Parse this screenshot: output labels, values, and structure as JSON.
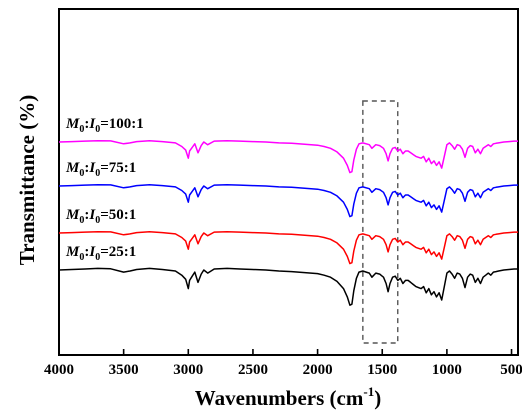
{
  "chart_data": {
    "type": "line",
    "title": "",
    "xlabel": "Wavenumbers",
    "xlabel_unit": "(cm",
    "xlabel_unit_sup": "-1",
    "xlabel_unit_close": ")",
    "ylabel": "Transmittance (%)",
    "xlim": [
      4000,
      450
    ],
    "x_reversed": true,
    "grid": false,
    "legend": "inline labels above each curve",
    "x_ticks": [
      4000,
      3500,
      3000,
      2500,
      2000,
      1500,
      1000,
      500
    ],
    "x_tick_labels": [
      "4000",
      "3500",
      "3000",
      "2500",
      "2000",
      "1500",
      "1000",
      "500"
    ],
    "y_ticks_shown": false,
    "highlight_box": {
      "x_from": 1650,
      "x_to": 1380,
      "style": "dashed"
    },
    "series": [
      {
        "name": "M0:I0=100:1",
        "label_parts": [
          "M",
          "0",
          ":",
          "I",
          "0",
          "=100:1"
        ],
        "color": "#ff00ff",
        "offset": 3
      },
      {
        "name": "M0:I0=75:1",
        "label_parts": [
          "M",
          "0",
          ":",
          "I",
          "0",
          "=75:1"
        ],
        "color": "#0000ff",
        "offset": 2
      },
      {
        "name": "M0:I0=50:1",
        "label_parts": [
          "M",
          "0",
          ":",
          "I",
          "0",
          "=50:1"
        ],
        "color": "#ff0000",
        "offset": 1
      },
      {
        "name": "M0:I0=25:1",
        "label_parts": [
          "M",
          "0",
          ":",
          "I",
          "0",
          "=25:1"
        ],
        "color": "#000000",
        "offset": 0
      }
    ],
    "profile": {
      "x": [
        4000,
        3900,
        3800,
        3700,
        3600,
        3500,
        3450,
        3400,
        3300,
        3200,
        3100,
        3050,
        3020,
        3000,
        2990,
        2970,
        2950,
        2925,
        2900,
        2880,
        2850,
        2800,
        2700,
        2600,
        2500,
        2400,
        2300,
        2200,
        2100,
        2000,
        1950,
        1900,
        1850,
        1800,
        1770,
        1750,
        1735,
        1720,
        1700,
        1680,
        1650,
        1600,
        1580,
        1550,
        1520,
        1490,
        1470,
        1455,
        1440,
        1420,
        1400,
        1380,
        1360,
        1340,
        1320,
        1300,
        1280,
        1260,
        1240,
        1220,
        1200,
        1180,
        1160,
        1140,
        1120,
        1100,
        1080,
        1060,
        1040,
        1020,
        1000,
        980,
        960,
        940,
        920,
        900,
        880,
        860,
        840,
        820,
        800,
        780,
        760,
        740,
        720,
        700,
        680,
        660,
        640,
        620,
        600,
        560,
        520,
        480,
        450
      ],
      "y": [
        0.0,
        0.05,
        0.1,
        0.15,
        0.12,
        -0.2,
        -0.1,
        0.05,
        0.15,
        0.05,
        -0.1,
        -0.5,
        -0.9,
        -1.8,
        -1.0,
        -0.6,
        -0.2,
        -1.2,
        -0.4,
        0.0,
        -0.3,
        0.1,
        0.15,
        0.1,
        0.05,
        0.0,
        -0.1,
        -0.15,
        -0.25,
        -0.35,
        -0.5,
        -0.7,
        -1.1,
        -1.8,
        -2.6,
        -3.4,
        -3.3,
        -2.0,
        -0.8,
        -0.2,
        -0.1,
        -0.3,
        -0.7,
        -0.3,
        -0.4,
        -0.7,
        -1.3,
        -2.1,
        -1.3,
        -0.7,
        -0.6,
        -1.0,
        -0.8,
        -1.3,
        -1.0,
        -1.0,
        -1.2,
        -1.4,
        -1.6,
        -1.7,
        -1.8,
        -1.6,
        -2.2,
        -1.8,
        -2.4,
        -2.1,
        -2.6,
        -2.2,
        -2.9,
        -1.6,
        -0.3,
        -0.1,
        -0.4,
        -0.8,
        -0.3,
        -0.4,
        -0.8,
        -1.7,
        -0.7,
        -0.4,
        -0.5,
        -1.2,
        -0.8,
        -1.3,
        -0.7,
        -0.5,
        -0.3,
        -0.5,
        -0.2,
        -0.15,
        -0.1,
        0.0,
        0.05,
        0.1,
        0.1
      ]
    }
  }
}
